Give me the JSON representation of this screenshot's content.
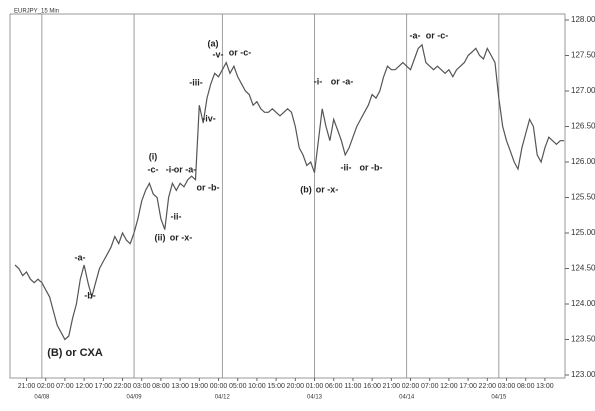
{
  "chart_data": {
    "type": "line",
    "title": "EURJPY_15 Min",
    "color": "#555555",
    "categories": [
      null,
      null,
      null,
      "21:00",
      null,
      null,
      null,
      null,
      "02:00",
      null,
      null,
      null,
      null,
      "07:00",
      null,
      null,
      null,
      null,
      "12:00",
      null,
      null,
      null,
      null,
      "17:00",
      null,
      null,
      null,
      null,
      "22:00",
      null,
      null,
      null,
      null,
      "03:00",
      null,
      null,
      null,
      null,
      "08:00",
      null,
      null,
      null,
      null,
      "13:00",
      null,
      null,
      null,
      null,
      "19:00",
      null,
      null,
      null,
      null,
      "00:00",
      null,
      null,
      null,
      null,
      "05:00",
      null,
      null,
      null,
      null,
      "10:00",
      null,
      null,
      null,
      null,
      "15:00",
      null,
      null,
      null,
      null,
      "20:00",
      null,
      null,
      null,
      null,
      "01:00",
      null,
      null,
      null,
      null,
      "06:00",
      null,
      null,
      null,
      null,
      "11:00",
      null,
      null,
      null,
      null,
      "16:00",
      null,
      null,
      null,
      null,
      "21:00",
      null,
      null,
      null,
      null,
      "02:00",
      null,
      null,
      null,
      null,
      "07:00",
      null,
      null,
      null,
      null,
      "12:00",
      null,
      null,
      null,
      null,
      "17:00",
      null,
      null,
      null,
      null,
      "22:00",
      null,
      null,
      null,
      null,
      "03:00",
      null,
      null,
      null,
      null,
      "08:00",
      null,
      null,
      null,
      null,
      "13:00",
      null,
      null,
      null,
      null,
      null
    ],
    "dates": [
      null,
      null,
      null,
      null,
      null,
      null,
      null,
      "04/08",
      null,
      null,
      null,
      null,
      null,
      null,
      null,
      null,
      null,
      null,
      null,
      null,
      null,
      null,
      null,
      null,
      null,
      null,
      null,
      null,
      null,
      null,
      null,
      "04/09",
      null,
      null,
      null,
      null,
      null,
      null,
      null,
      null,
      null,
      null,
      null,
      null,
      null,
      null,
      null,
      null,
      null,
      null,
      null,
      null,
      null,
      null,
      "04/12",
      null,
      null,
      null,
      null,
      null,
      null,
      null,
      null,
      null,
      null,
      null,
      null,
      null,
      null,
      null,
      null,
      null,
      null,
      null,
      null,
      null,
      null,
      null,
      "04/13",
      null,
      null,
      null,
      null,
      null,
      null,
      null,
      null,
      null,
      null,
      null,
      null,
      null,
      null,
      null,
      null,
      null,
      null,
      null,
      null,
      null,
      null,
      null,
      "04/14",
      null,
      null,
      null,
      null,
      null,
      null,
      null,
      null,
      null,
      null,
      null,
      null,
      null,
      null,
      null,
      null,
      null,
      null,
      null,
      null,
      null,
      null,
      null,
      "04/15",
      null,
      null,
      null,
      null,
      null,
      null,
      null,
      null,
      null,
      null,
      null,
      null,
      null,
      null,
      null,
      null,
      null
    ],
    "values": [
      124.55,
      124.5,
      124.4,
      124.45,
      124.35,
      124.3,
      124.35,
      124.3,
      124.2,
      124.1,
      123.9,
      123.7,
      123.6,
      123.5,
      123.55,
      123.8,
      124.0,
      124.35,
      124.55,
      124.3,
      124.1,
      124.3,
      124.5,
      124.6,
      124.7,
      124.8,
      124.95,
      124.85,
      125.0,
      124.9,
      124.85,
      125.0,
      125.2,
      125.45,
      125.6,
      125.7,
      125.55,
      125.5,
      125.2,
      125.05,
      125.5,
      125.7,
      125.6,
      125.7,
      125.65,
      125.75,
      125.8,
      125.75,
      126.8,
      126.55,
      126.9,
      127.1,
      127.25,
      127.2,
      127.3,
      127.4,
      127.25,
      127.35,
      127.2,
      127.1,
      127.0,
      126.95,
      126.8,
      126.85,
      126.75,
      126.7,
      126.7,
      126.75,
      126.7,
      126.65,
      126.7,
      126.75,
      126.7,
      126.5,
      126.2,
      126.1,
      125.95,
      126.0,
      125.85,
      126.3,
      126.75,
      126.5,
      126.3,
      126.6,
      126.45,
      126.3,
      126.1,
      126.2,
      126.35,
      126.5,
      126.6,
      126.7,
      126.8,
      126.95,
      126.9,
      127.0,
      127.2,
      127.35,
      127.3,
      127.3,
      127.35,
      127.4,
      127.35,
      127.3,
      127.45,
      127.6,
      127.65,
      127.4,
      127.35,
      127.3,
      127.35,
      127.3,
      127.25,
      127.3,
      127.2,
      127.3,
      127.35,
      127.4,
      127.5,
      127.55,
      127.6,
      127.5,
      127.45,
      127.6,
      127.5,
      127.4,
      126.9,
      126.5,
      126.3,
      126.15,
      126.0,
      125.9,
      126.2,
      126.4,
      126.6,
      126.5,
      126.1,
      126.0,
      126.2,
      126.35,
      126.3,
      126.25,
      126.3,
      126.3
    ],
    "ylim": [
      123.0,
      128.0
    ],
    "yticks": [
      {
        "value": 123.0,
        "label": "123.00"
      },
      {
        "value": 123.5,
        "label": "123.50"
      },
      {
        "value": 124.0,
        "label": "124.00"
      },
      {
        "value": 124.5,
        "label": "124.50"
      },
      {
        "value": 125.0,
        "label": "125.00"
      },
      {
        "value": 125.5,
        "label": "125.50"
      },
      {
        "value": 126.0,
        "label": "126.00"
      },
      {
        "value": 126.5,
        "label": "126.50"
      },
      {
        "value": 127.0,
        "label": "127.00"
      },
      {
        "value": 127.5,
        "label": "127.50"
      },
      {
        "value": 128.0,
        "label": "128.00"
      }
    ],
    "annotations": [
      "(a)",
      "-v-",
      "or -c-",
      "-iii-",
      "-iv-",
      "(i)",
      "-c-",
      "-i-",
      "or -a-",
      "or -b-",
      "-ii-",
      "(ii)",
      "or -x-",
      "-a-",
      "-b-",
      "(B) or CXA",
      "(b)",
      "or -x-",
      "-i-",
      "or -a-",
      "-ii-",
      "or -b-",
      "-a-",
      "or -c-"
    ]
  }
}
